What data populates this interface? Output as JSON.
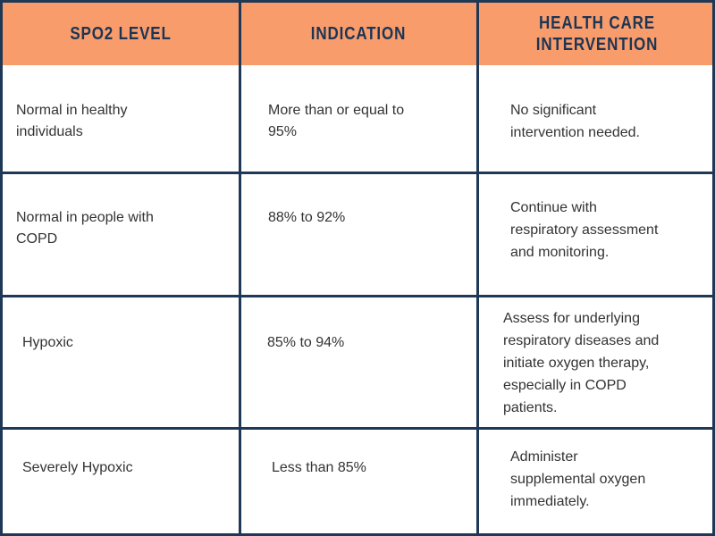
{
  "table": {
    "header": [
      [
        "SPO2 LEVEL"
      ],
      [
        "INDICATION"
      ],
      [
        "HEALTH CARE",
        "INTERVENTION"
      ]
    ],
    "rows": [
      [
        [
          "Normal in healthy",
          "individuals"
        ],
        [
          "More than or equal to",
          "95%"
        ],
        [
          "No significant",
          "intervention needed."
        ]
      ],
      [
        [
          "Normal in people with",
          "COPD"
        ],
        [
          "88% to 92%"
        ],
        [
          "Continue with",
          "respiratory assessment",
          "and monitoring."
        ]
      ],
      [
        [
          "Hypoxic"
        ],
        [
          "85% to 94%"
        ],
        [
          "Assess for underlying",
          "respiratory diseases and",
          "initiate oxygen therapy,",
          "especially in COPD",
          "patients."
        ]
      ],
      [
        [
          "Severely Hypoxic"
        ],
        [
          "Less than 85%"
        ],
        [
          "Administer",
          "supplemental oxygen",
          "immediately."
        ]
      ]
    ]
  }
}
